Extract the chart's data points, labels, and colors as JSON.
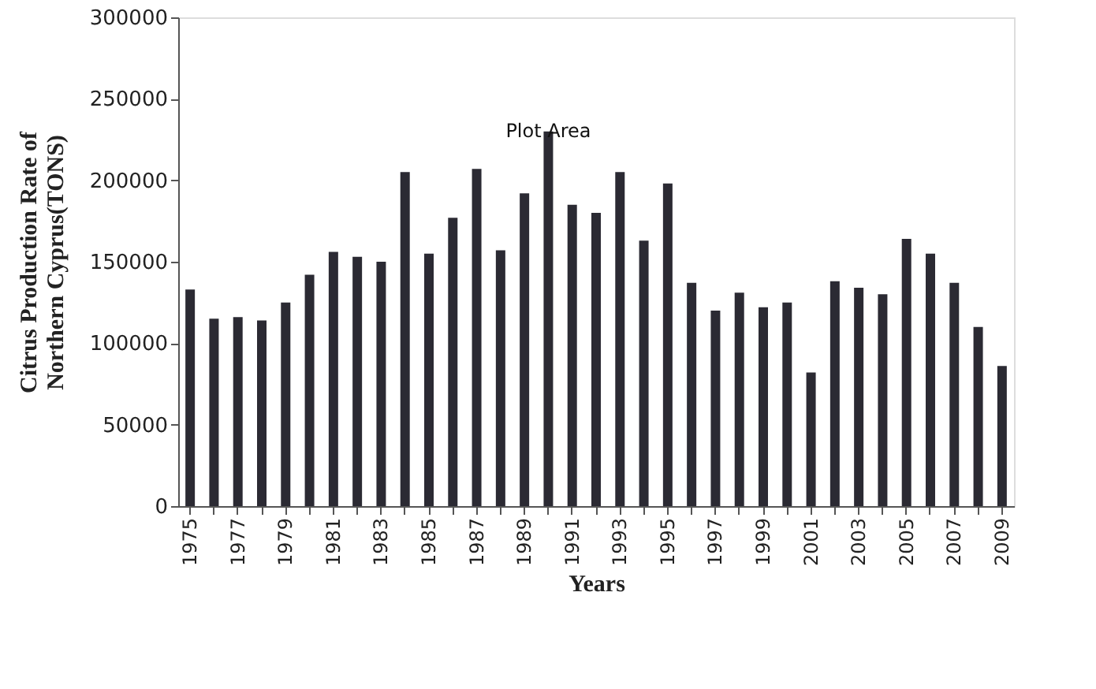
{
  "chart_data": {
    "type": "bar",
    "xlabel": "Years",
    "ylabel": "Citrus Production Rate of\nNorthern Cyprus(TONS)",
    "categories": [
      "1975",
      null,
      "1977",
      null,
      "1979",
      null,
      "1981",
      null,
      "1983",
      null,
      "1985",
      null,
      "1987",
      null,
      "1989",
      null,
      "1991",
      null,
      "1993",
      null,
      "1995",
      null,
      "1997",
      null,
      "1999",
      null,
      "2001",
      null,
      "2003",
      null,
      "2005",
      null,
      "2007",
      null,
      "2009"
    ],
    "values": [
      133000,
      115000,
      116000,
      114000,
      125000,
      142000,
      156000,
      153000,
      150000,
      205000,
      155000,
      177000,
      207000,
      157000,
      192000,
      230000,
      185000,
      180000,
      205000,
      163000,
      198000,
      137000,
      120000,
      131000,
      122000,
      125000,
      82000,
      138000,
      134000,
      130000,
      164000,
      155000,
      137000,
      110000,
      86000
    ],
    "color": "#2b2a33",
    "ylim": [
      0,
      300000
    ],
    "yticks": [
      0,
      50000,
      100000,
      150000,
      200000,
      250000,
      300000
    ],
    "grid": false,
    "annotations": [
      "Plot Area"
    ]
  }
}
